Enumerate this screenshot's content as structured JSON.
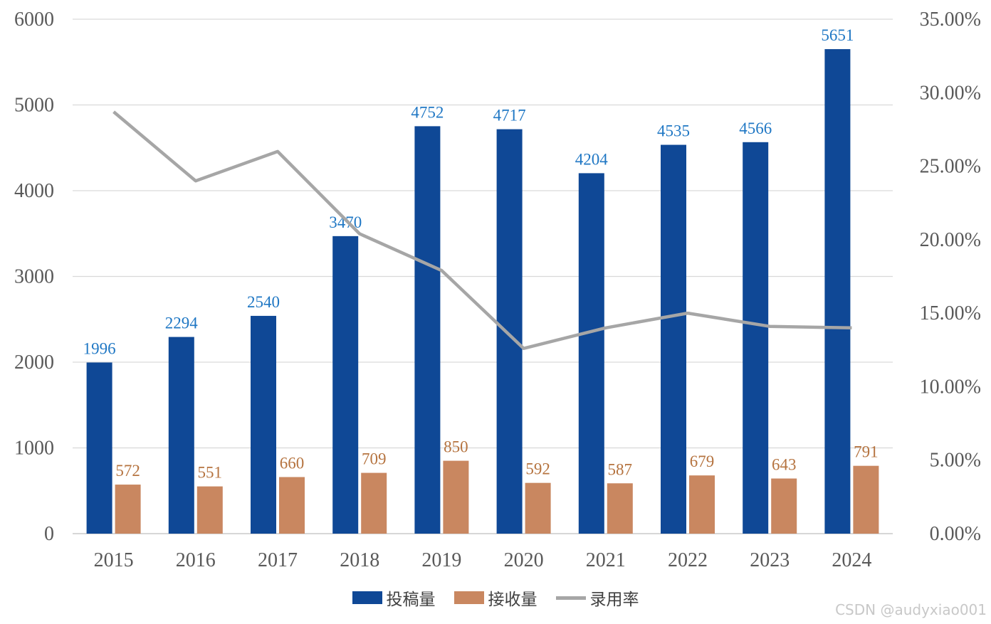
{
  "chart_data": {
    "type": "bar",
    "categories": [
      "2015",
      "2016",
      "2017",
      "2018",
      "2019",
      "2020",
      "2021",
      "2022",
      "2023",
      "2024"
    ],
    "series": [
      {
        "name": "投稿量",
        "kind": "bar",
        "axis": "left",
        "color": "#0f4896",
        "values": [
          1996,
          2294,
          2540,
          3470,
          4752,
          4717,
          4204,
          4535,
          4566,
          5651
        ]
      },
      {
        "name": "接收量",
        "kind": "bar",
        "axis": "left",
        "color": "#c98760",
        "values": [
          572,
          551,
          660,
          709,
          850,
          592,
          587,
          679,
          643,
          791
        ]
      },
      {
        "name": "录用率",
        "kind": "line",
        "axis": "right",
        "color": "#a6a6a6",
        "values": [
          28.7,
          24.0,
          26.0,
          20.4,
          17.9,
          12.6,
          14.0,
          15.0,
          14.1,
          14.0
        ]
      }
    ],
    "ylim": [
      0,
      6000
    ],
    "yticks": [
      "0",
      "1000",
      "2000",
      "3000",
      "4000",
      "5000",
      "6000"
    ],
    "y2lim": [
      0,
      35
    ],
    "y2ticks": [
      "0.00%",
      "5.00%",
      "10.00%",
      "15.00%",
      "20.00%",
      "25.00%",
      "30.00%",
      "35.00%"
    ],
    "grid": true,
    "legend_position": "bottom"
  },
  "watermark": "CSDN @audyxiao001"
}
